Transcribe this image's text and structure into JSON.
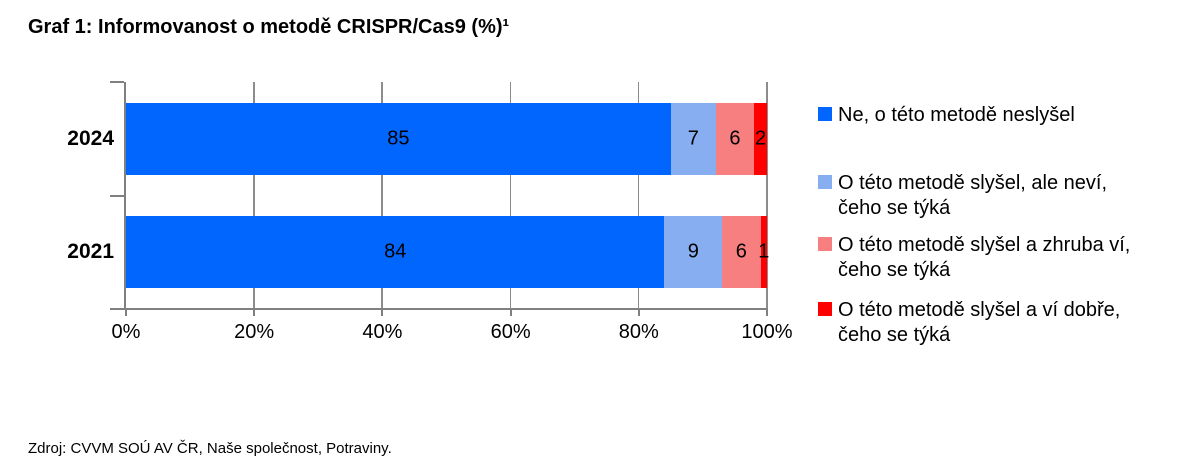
{
  "title": "Graf 1: Informovanost o metodě CRISPR/Cas9 (%)¹",
  "source_note": "Zdroj: CVVM SOÚ AV ČR, Naše společnost, Potraviny.",
  "chart_data": {
    "type": "bar",
    "orientation": "horizontal",
    "stacked": true,
    "title": "Graf 1: Informovanost o metodě CRISPR/Cas9 (%)¹",
    "xlabel": "",
    "ylabel": "",
    "xlim": [
      0,
      100
    ],
    "x_ticks": [
      {
        "value": 0,
        "label": "0%"
      },
      {
        "value": 20,
        "label": "20%"
      },
      {
        "value": 40,
        "label": "40%"
      },
      {
        "value": 60,
        "label": "60%"
      },
      {
        "value": 80,
        "label": "80%"
      },
      {
        "value": 100,
        "label": "100%"
      }
    ],
    "grid": true,
    "gridline_values": [
      20,
      40,
      60,
      80,
      100
    ],
    "legend_position": "right",
    "categories": [
      "2024",
      "2021"
    ],
    "series": [
      {
        "name": "Ne, o této metodě neslyšel",
        "legend_label": "Ne, o této metodě neslyšel",
        "color": "#0066FE",
        "values": [
          85,
          84
        ]
      },
      {
        "name": "O této metodě slyšel, ale neví, čeho se týká",
        "legend_label": "O této metodě slyšel, ale neví,\nčeho se týká",
        "color": "#87AEF0",
        "values": [
          7,
          9
        ]
      },
      {
        "name": "O této metodě slyšel a zhruba ví, čeho se týká",
        "legend_label": "O této metodě slyšel a zhruba ví,\nčeho se týká",
        "color": "#F77F7F",
        "values": [
          6,
          6
        ]
      },
      {
        "name": "O této metodě slyšel a ví dobře, čeho se týká",
        "legend_label": "O této metodě slyšel a ví dobře,\nčeho se týká",
        "color": "#FE0000",
        "values": [
          2,
          1
        ]
      }
    ],
    "colors": {
      "axis": "#808080",
      "gridline": "#8c8c8c",
      "text": "#000000",
      "background": "#ffffff"
    }
  }
}
